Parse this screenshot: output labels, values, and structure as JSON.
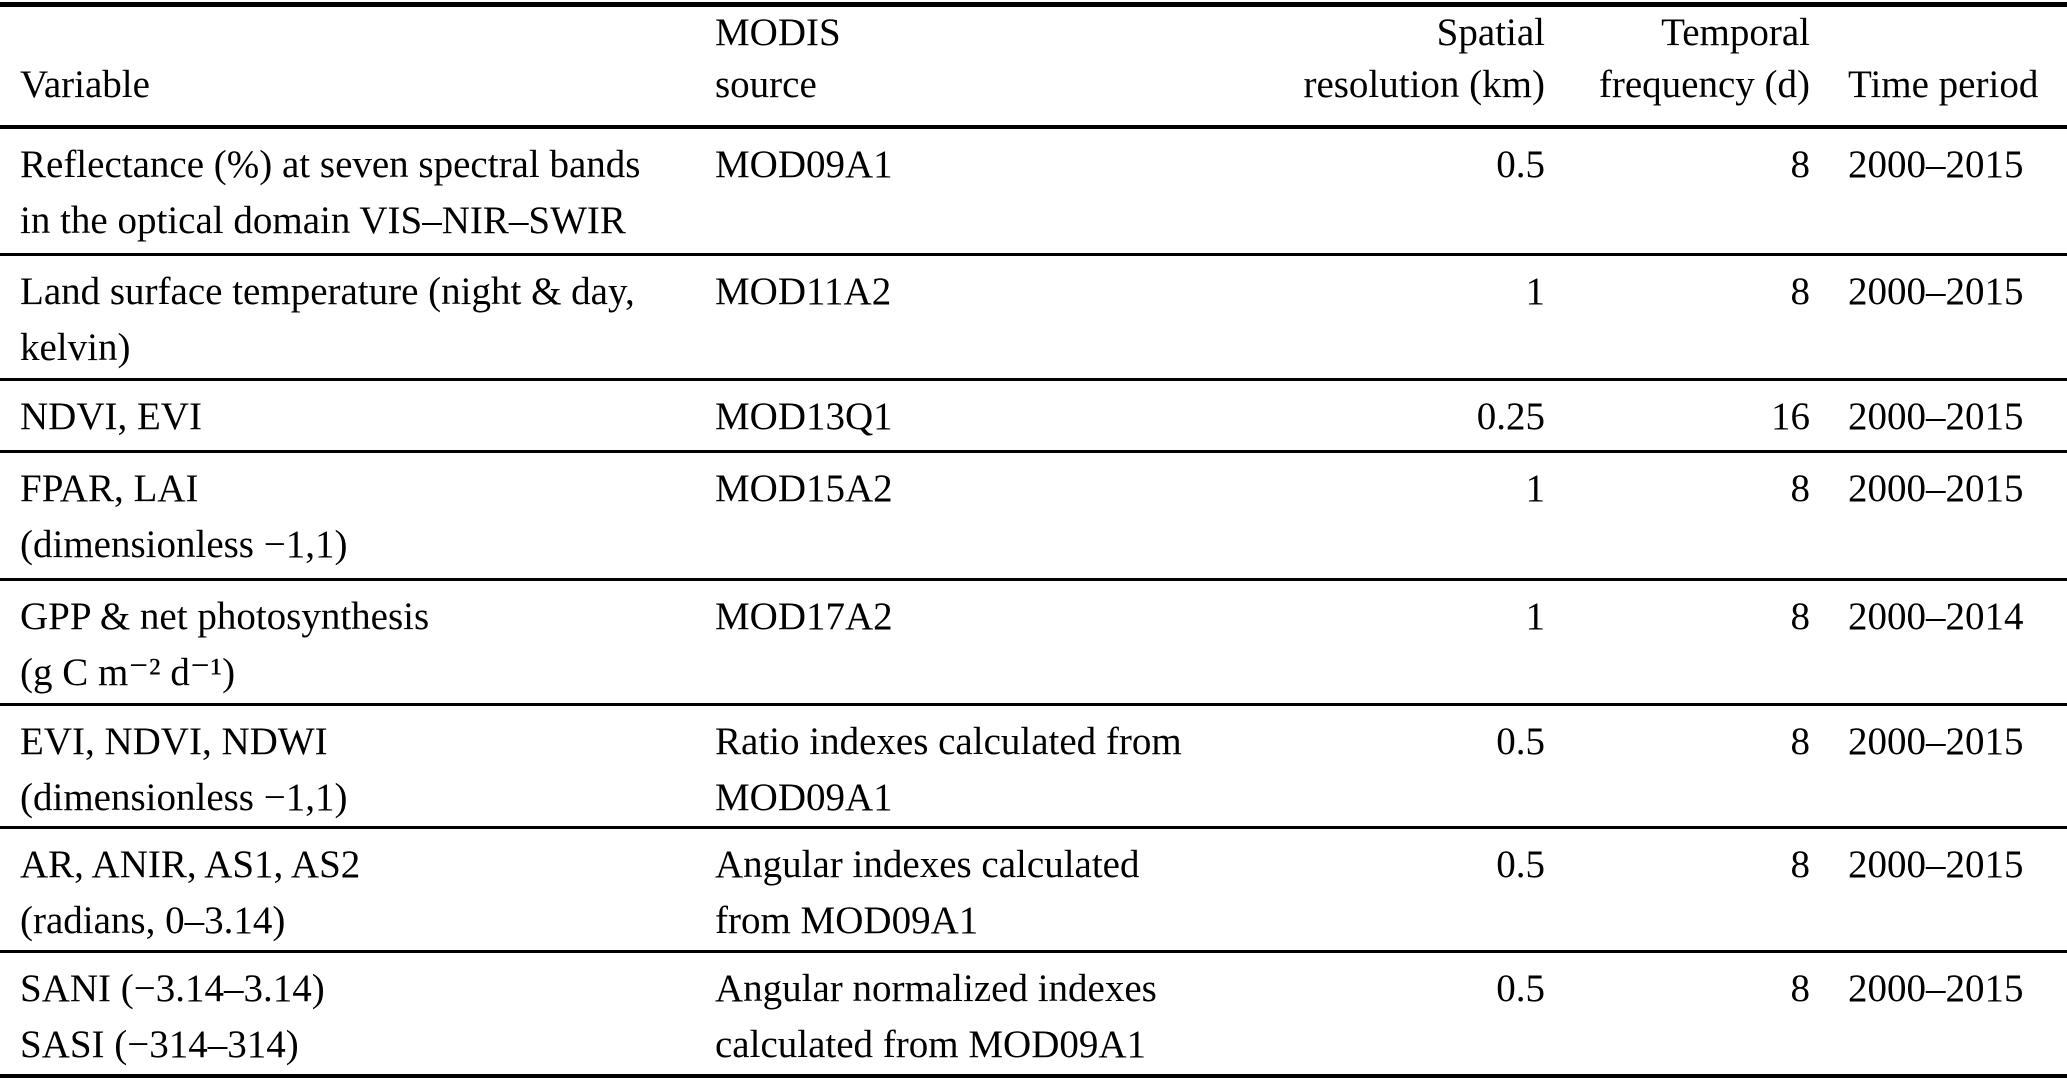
{
  "colors": {
    "text": "#000000",
    "background": "#ffffff",
    "rule": "#000000"
  },
  "table": {
    "columns": [
      {
        "id": "variable",
        "label": [
          "Variable"
        ],
        "align": "left"
      },
      {
        "id": "modis_source",
        "label": [
          "MODIS",
          "source"
        ],
        "align": "left"
      },
      {
        "id": "spatial_resolution",
        "label": [
          "Spatial",
          "resolution (km)"
        ],
        "align": "right"
      },
      {
        "id": "temporal_frequency",
        "label": [
          "Temporal",
          "frequency (d)"
        ],
        "align": "right"
      },
      {
        "id": "time_period",
        "label": [
          "Time period"
        ],
        "align": "left"
      }
    ],
    "rows": [
      {
        "variable": [
          "Reflectance (%) at seven spectral bands",
          "in the optical domain VIS–NIR–SWIR"
        ],
        "modis_source": [
          "MOD09A1"
        ],
        "spatial_resolution": "0.5",
        "temporal_frequency": "8",
        "time_period": "2000–2015"
      },
      {
        "variable": [
          "Land surface temperature (night & day,",
          "kelvin)"
        ],
        "modis_source": [
          "MOD11A2"
        ],
        "spatial_resolution": "1",
        "temporal_frequency": "8",
        "time_period": "2000–2015"
      },
      {
        "variable": [
          "NDVI, EVI"
        ],
        "modis_source": [
          "MOD13Q1"
        ],
        "spatial_resolution": "0.25",
        "temporal_frequency": "16",
        "time_period": "2000–2015"
      },
      {
        "variable": [
          "FPAR, LAI",
          "(dimensionless −1,1)"
        ],
        "modis_source": [
          "MOD15A2"
        ],
        "spatial_resolution": "1",
        "temporal_frequency": "8",
        "time_period": "2000–2015"
      },
      {
        "variable": [
          "GPP & net photosynthesis",
          "(g C m⁻² d⁻¹)"
        ],
        "modis_source": [
          "MOD17A2"
        ],
        "spatial_resolution": "1",
        "temporal_frequency": "8",
        "time_period": "2000–2014"
      },
      {
        "variable": [
          "EVI, NDVI, NDWI",
          "(dimensionless −1,1)"
        ],
        "modis_source": [
          "Ratio indexes calculated from",
          "MOD09A1"
        ],
        "spatial_resolution": "0.5",
        "temporal_frequency": "8",
        "time_period": "2000–2015"
      },
      {
        "variable": [
          "AR, ANIR, AS1, AS2",
          "(radians, 0–3.14)"
        ],
        "modis_source": [
          "Angular indexes calculated",
          "from MOD09A1"
        ],
        "spatial_resolution": "0.5",
        "temporal_frequency": "8",
        "time_period": "2000–2015"
      },
      {
        "variable": [
          "SANI (−3.14–3.14)",
          "SASI (−314–314)"
        ],
        "modis_source": [
          "Angular normalized indexes",
          "calculated from MOD09A1"
        ],
        "spatial_resolution": "0.5",
        "temporal_frequency": "8",
        "time_period": "2000–2015"
      }
    ]
  }
}
